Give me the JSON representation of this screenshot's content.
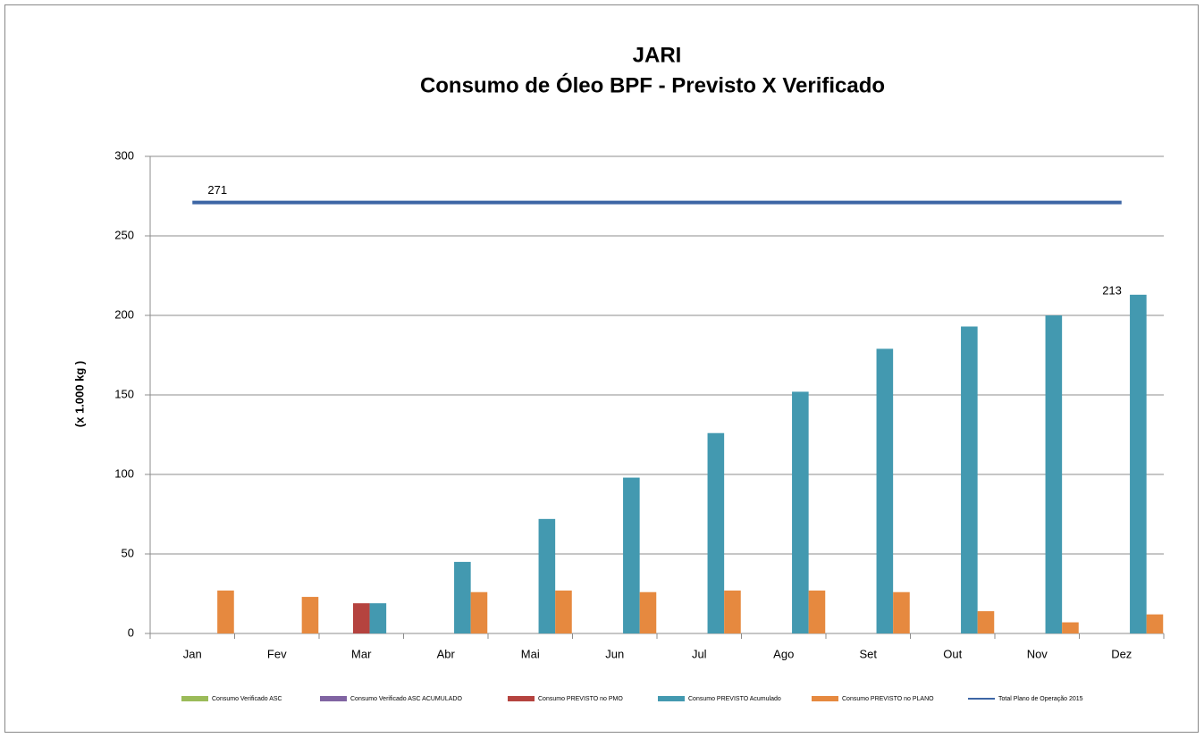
{
  "chart_data": {
    "type": "bar",
    "title": "JARI",
    "subtitle": "Consumo de Óleo BPF - Previsto X Verificado",
    "y_label": "(x 1.000 kg )",
    "categories": [
      "Jan",
      "Fev",
      "Mar",
      "Abr",
      "Mai",
      "Jun",
      "Jul",
      "Ago",
      "Set",
      "Out",
      "Nov",
      "Dez"
    ],
    "series": [
      {
        "name": "Consumo Verificado ASC",
        "color": "#9bbb59",
        "type": "bar",
        "values": [
          null,
          null,
          null,
          null,
          null,
          null,
          null,
          null,
          null,
          null,
          null,
          null
        ]
      },
      {
        "name": "Consumo Verificado ASC ACUMULADO",
        "color": "#8064a2",
        "type": "bar",
        "values": [
          null,
          null,
          null,
          null,
          null,
          null,
          null,
          null,
          null,
          null,
          null,
          null
        ]
      },
      {
        "name": "Consumo PREVISTO no PMO",
        "color": "#b5433f",
        "type": "bar",
        "values": [
          null,
          null,
          19,
          null,
          null,
          null,
          null,
          null,
          null,
          null,
          null,
          null
        ]
      },
      {
        "name": "Consumo PREVISTO Acumulado",
        "color": "#4399b0",
        "type": "bar",
        "values": [
          null,
          null,
          19,
          45,
          72,
          98,
          126,
          152,
          179,
          193,
          200,
          213
        ],
        "value_labels": [
          null,
          null,
          null,
          null,
          null,
          null,
          null,
          null,
          null,
          null,
          null,
          "213"
        ]
      },
      {
        "name": "Consumo PREVISTO no PLANO",
        "color": "#e6893f",
        "type": "bar",
        "values": [
          27,
          23,
          null,
          26,
          27,
          26,
          27,
          27,
          26,
          14,
          7,
          12
        ]
      },
      {
        "name": "Total Plano de Operação 2015",
        "color": "#3d66a5",
        "type": "line",
        "values": [
          271,
          271,
          271,
          271,
          271,
          271,
          271,
          271,
          271,
          271,
          271,
          271
        ],
        "value_labels": [
          "271",
          null,
          null,
          null,
          null,
          null,
          null,
          null,
          null,
          null,
          null,
          null
        ]
      }
    ],
    "ylim": [
      0,
      300
    ],
    "yticks": [
      0,
      50,
      100,
      150,
      200,
      250,
      300
    ],
    "grid": true,
    "legend": "bottom"
  }
}
